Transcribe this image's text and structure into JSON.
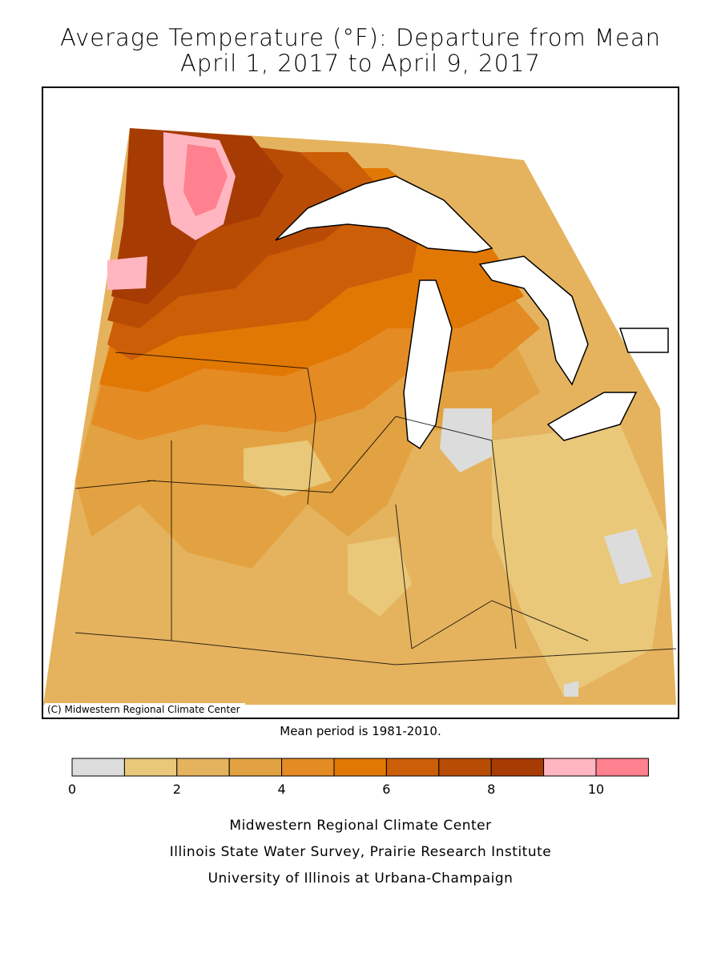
{
  "title": {
    "line1": "Average Temperature (°F): Departure from Mean",
    "line2": "April 1, 2017 to April 9, 2017"
  },
  "map": {
    "copyright": "(C) Midwestern Regional Climate Center",
    "mean_period": "Mean period is 1981-2010.",
    "colors": {
      "c0_1": "#dcdcdc",
      "c1_2": "#e9c87a",
      "c2_3": "#e5b35e",
      "c3_4": "#e3a241",
      "c4_5": "#e48b24",
      "c5_6": "#e27804",
      "c6_7": "#cc5e08",
      "c7_8": "#b84c05",
      "c8_9": "#a63b03",
      "c9_10": "#ffb6c1",
      "c10_11": "#ff808e",
      "water": "#ffffff",
      "outline": "#000000"
    }
  },
  "legend": {
    "bins": [
      {
        "from": 0,
        "to": 1,
        "color": "#dcdcdc"
      },
      {
        "from": 1,
        "to": 2,
        "color": "#e9c87a"
      },
      {
        "from": 2,
        "to": 3,
        "color": "#e5b35e"
      },
      {
        "from": 3,
        "to": 4,
        "color": "#e3a241"
      },
      {
        "from": 4,
        "to": 5,
        "color": "#e48b24"
      },
      {
        "from": 5,
        "to": 6,
        "color": "#e27804"
      },
      {
        "from": 6,
        "to": 7,
        "color": "#cc5e08"
      },
      {
        "from": 7,
        "to": 8,
        "color": "#b84c05"
      },
      {
        "from": 8,
        "to": 9,
        "color": "#a63b03"
      },
      {
        "from": 9,
        "to": 10,
        "color": "#ffb6c1"
      },
      {
        "from": 10,
        "to": 11,
        "color": "#ff808e"
      }
    ],
    "tick_labels": [
      "0",
      "2",
      "4",
      "6",
      "8",
      "10"
    ]
  },
  "credits": {
    "line1": "Midwestern Regional Climate Center",
    "line2": "Illinois State Water Survey, Prairie Research Institute",
    "line3": "University of Illinois at Urbana-Champaign"
  }
}
